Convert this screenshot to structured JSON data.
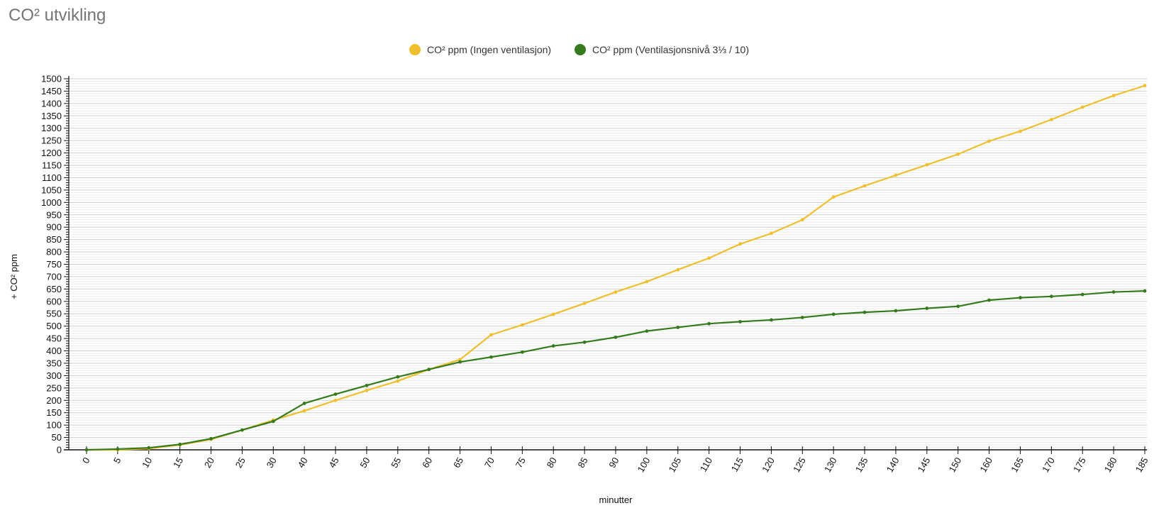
{
  "page": {
    "title": "CO² utvikling"
  },
  "chart_data": {
    "type": "line",
    "title": "CO² utvikling",
    "xlabel": "minutter",
    "ylabel": "+ CO² ppm",
    "ylim": [
      0,
      1500
    ],
    "y_ticks": [
      0,
      50,
      100,
      150,
      200,
      250,
      300,
      350,
      400,
      450,
      500,
      550,
      600,
      650,
      700,
      750,
      800,
      850,
      900,
      950,
      1000,
      1050,
      1100,
      1150,
      1200,
      1250,
      1300,
      1350,
      1400,
      1450,
      1500
    ],
    "categories": [
      "0",
      "5",
      "10",
      "15",
      "20",
      "25",
      "30",
      "40",
      "45",
      "50",
      "55",
      "60",
      "65",
      "70",
      "75",
      "80",
      "85",
      "90",
      "100",
      "105",
      "110",
      "115",
      "120",
      "125",
      "130",
      "135",
      "140",
      "145",
      "150",
      "160",
      "165",
      "170",
      "175",
      "180",
      "185"
    ],
    "grid": true,
    "legend_position": "top-center",
    "series": [
      {
        "name": "CO² ppm (Ingen ventilasjon)",
        "color": "#f0bf2e",
        "values": [
          0,
          0,
          5,
          20,
          42,
          80,
          120,
          158,
          200,
          240,
          278,
          325,
          365,
          465,
          505,
          548,
          592,
          638,
          680,
          728,
          775,
          832,
          875,
          930,
          1022,
          1067,
          1110,
          1152,
          1195,
          1248,
          1288,
          1335,
          1385,
          1432,
          1472
        ]
      },
      {
        "name": "CO² ppm (Ventilasjonsnivå 3⅓ / 10)",
        "color": "#357a1c",
        "values": [
          0,
          3,
          8,
          22,
          45,
          80,
          115,
          188,
          225,
          260,
          295,
          325,
          355,
          375,
          395,
          420,
          435,
          455,
          480,
          495,
          510,
          518,
          525,
          535,
          548,
          556,
          562,
          572,
          580,
          605,
          615,
          620,
          628,
          638,
          642
        ]
      }
    ]
  }
}
